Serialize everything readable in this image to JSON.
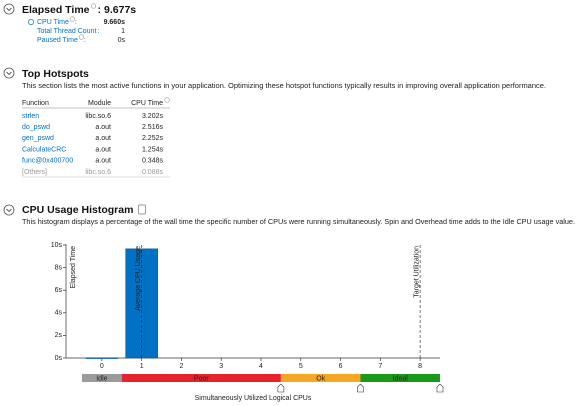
{
  "separator": ":",
  "elapsed": {
    "title": "Elapsed Time",
    "value": "9.677s",
    "metrics": [
      {
        "label": "CPU Time",
        "value": "9.660s"
      },
      {
        "label": "Total Thread Count",
        "value": "1"
      },
      {
        "label": "Paused Time",
        "value": "0s"
      }
    ]
  },
  "hotspots": {
    "title": "Top Hotspots",
    "description": "This section lists the most active functions in your application. Optimizing these hotspot functions typically results in improving overall application performance.",
    "columns": [
      "Function",
      "Module",
      "CPU Time"
    ],
    "rows": [
      [
        "strlen",
        "libc.so.6",
        "3.202s"
      ],
      [
        "do_pswd",
        "a.out",
        "2.516s"
      ],
      [
        "gen_pswd",
        "a.out",
        "2.252s"
      ],
      [
        "CalculateCRC",
        "a.out",
        "1.254s"
      ],
      [
        "func@0x400700",
        "a.out",
        "0.348s"
      ],
      [
        "[Others]",
        "libc.so.6",
        "0.088s"
      ]
    ]
  },
  "histogram": {
    "title": "CPU Usage Histogram",
    "description": "This histogram displays a percentage of the wall time the specific number of CPUs were running simultaneously. Spin and Overhead time adds to the Idle CPU usage value."
  },
  "chart_data": {
    "type": "bar",
    "x_label": "Simultaneously Utilized Logical CPUs",
    "y_label": "Elapsed Time",
    "x": [
      0,
      1
    ],
    "values": [
      0.02,
      9.66
    ],
    "color": "#0071c5",
    "xlim": [
      -0.5,
      8.5
    ],
    "xticks": [
      0,
      1,
      2,
      3,
      4,
      5,
      6,
      7,
      8
    ],
    "ylim": [
      0,
      10
    ],
    "yticks": [
      {
        "value": 0,
        "label": "0s"
      },
      {
        "value": 2,
        "label": "2s"
      },
      {
        "value": 4,
        "label": "4s"
      },
      {
        "value": 6,
        "label": "6s"
      },
      {
        "value": 8,
        "label": "8s"
      },
      {
        "value": 10,
        "label": "10s"
      }
    ],
    "annotations": [
      {
        "label": "Average CPU Usage",
        "x": 1
      },
      {
        "label": "Target Utilization",
        "x": 8
      }
    ],
    "bands": [
      {
        "label": "Idle",
        "from": -0.5,
        "to": 0.5,
        "color": "#9b9b9b"
      },
      {
        "label": "Poor",
        "from": 0.5,
        "to": 4.5,
        "color": "#e6232a"
      },
      {
        "label": "Ok",
        "from": 4.5,
        "to": 6.5,
        "color": "#f5a623"
      },
      {
        "label": "Ideal",
        "from": 6.5,
        "to": 8.5,
        "color": "#1a9a1a"
      }
    ]
  }
}
